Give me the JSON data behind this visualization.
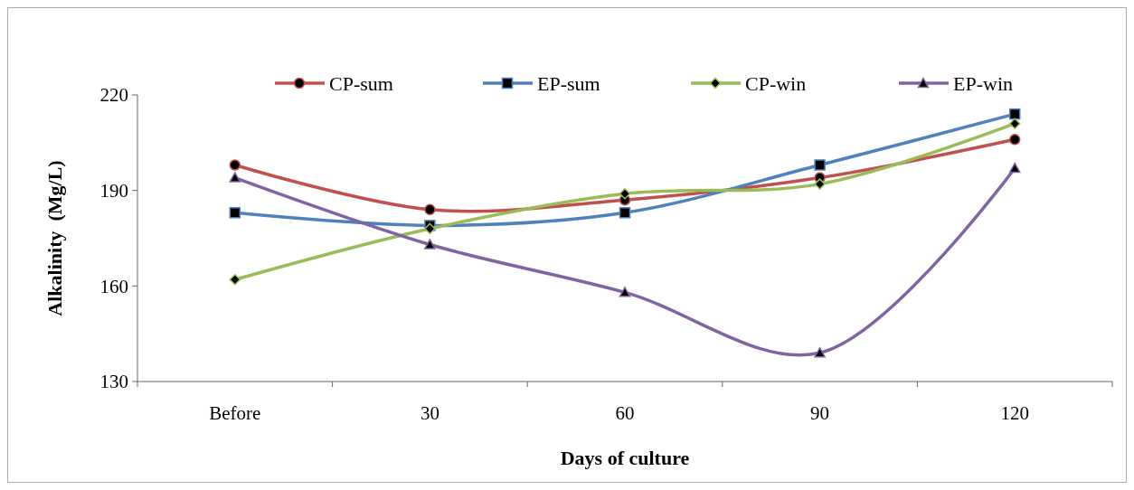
{
  "chart_data": {
    "type": "line",
    "xlabel": "Days of culture",
    "ylabel": "Alkalinity  (Mg/L)",
    "categories": [
      "Before",
      "30",
      "60",
      "90",
      "120"
    ],
    "ylim": [
      130,
      220
    ],
    "yticks": [
      130,
      160,
      190,
      220
    ],
    "grid": false,
    "legend": "top",
    "line_style": "solid",
    "series": [
      {
        "name": "CP-sum",
        "color": "#c0504d",
        "marker": "circle",
        "values": [
          198,
          184,
          187,
          194,
          206
        ]
      },
      {
        "name": "EP-sum",
        "color": "#4f81bd",
        "marker": "square",
        "values": [
          183,
          179,
          183,
          198,
          214
        ]
      },
      {
        "name": "CP-win",
        "color": "#9bbb59",
        "marker": "diamond",
        "values": [
          162,
          178,
          189,
          192,
          211
        ]
      },
      {
        "name": "EP-win",
        "color": "#8064a2",
        "marker": "triangle",
        "values": [
          194,
          173,
          158,
          139,
          197
        ]
      }
    ]
  }
}
